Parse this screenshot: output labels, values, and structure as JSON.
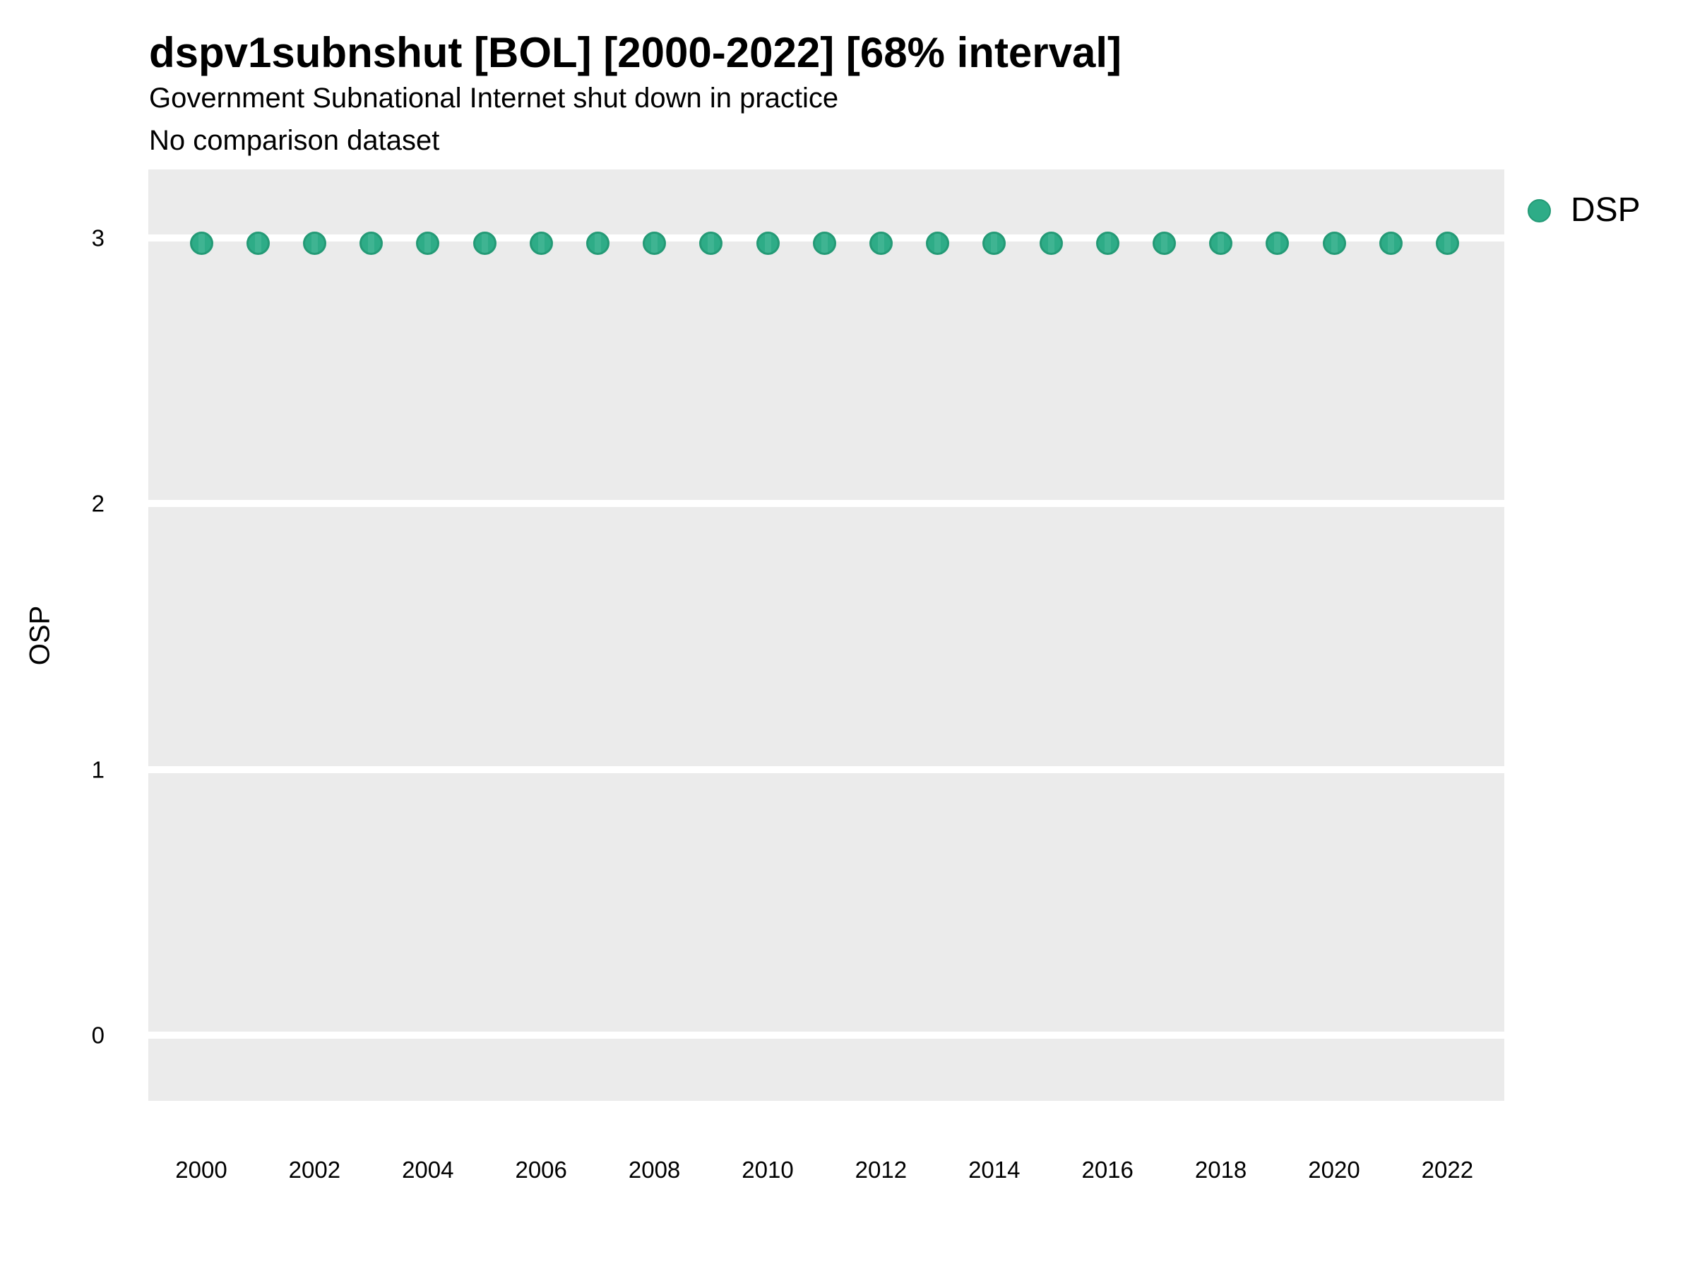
{
  "header": {
    "title": "dspv1subnshut [BOL] [2000-2022] [68% interval]",
    "subtitle": "Government Subnational Internet shut down in practice",
    "comparison_note": "No comparison dataset"
  },
  "axes": {
    "y": {
      "label": "OSP",
      "ticks": [
        3,
        2,
        1,
        0
      ]
    },
    "x": {
      "ticks": [
        2000,
        2002,
        2004,
        2006,
        2008,
        2010,
        2012,
        2014,
        2016,
        2018,
        2020,
        2022
      ]
    }
  },
  "legend": {
    "position": "right",
    "items": [
      {
        "label": "DSP",
        "color": "#2eac87"
      }
    ]
  },
  "colors": {
    "panel_bg": "#ebebeb",
    "gridline": "#ffffff",
    "point_fill": "#2eac87",
    "point_stroke": "#249a76",
    "point_stripe": "#3fb492",
    "text": "#000000"
  },
  "chart_data": {
    "type": "scatter",
    "title": "dspv1subnshut [BOL] [2000-2022] [68% interval]",
    "subtitle": "Government Subnational Internet shut down in practice",
    "note": "No comparison dataset",
    "xlabel": "",
    "ylabel": "OSP",
    "interval": "68%",
    "grid": "horizontal-major-only",
    "legend_position": "right",
    "xlim": [
      1999,
      2023
    ],
    "ylim": [
      -0.25,
      3.25
    ],
    "x": [
      2000,
      2001,
      2002,
      2003,
      2004,
      2005,
      2006,
      2007,
      2008,
      2009,
      2010,
      2011,
      2012,
      2013,
      2014,
      2015,
      2016,
      2017,
      2018,
      2019,
      2020,
      2021,
      2022
    ],
    "series": [
      {
        "name": "DSP",
        "color": "#2eac87",
        "values": [
          2.98,
          2.98,
          2.98,
          2.98,
          2.98,
          2.98,
          2.98,
          2.98,
          2.98,
          2.98,
          2.98,
          2.98,
          2.98,
          2.98,
          2.98,
          2.98,
          2.98,
          2.98,
          2.98,
          2.98,
          2.98,
          2.98,
          2.98
        ]
      }
    ]
  }
}
